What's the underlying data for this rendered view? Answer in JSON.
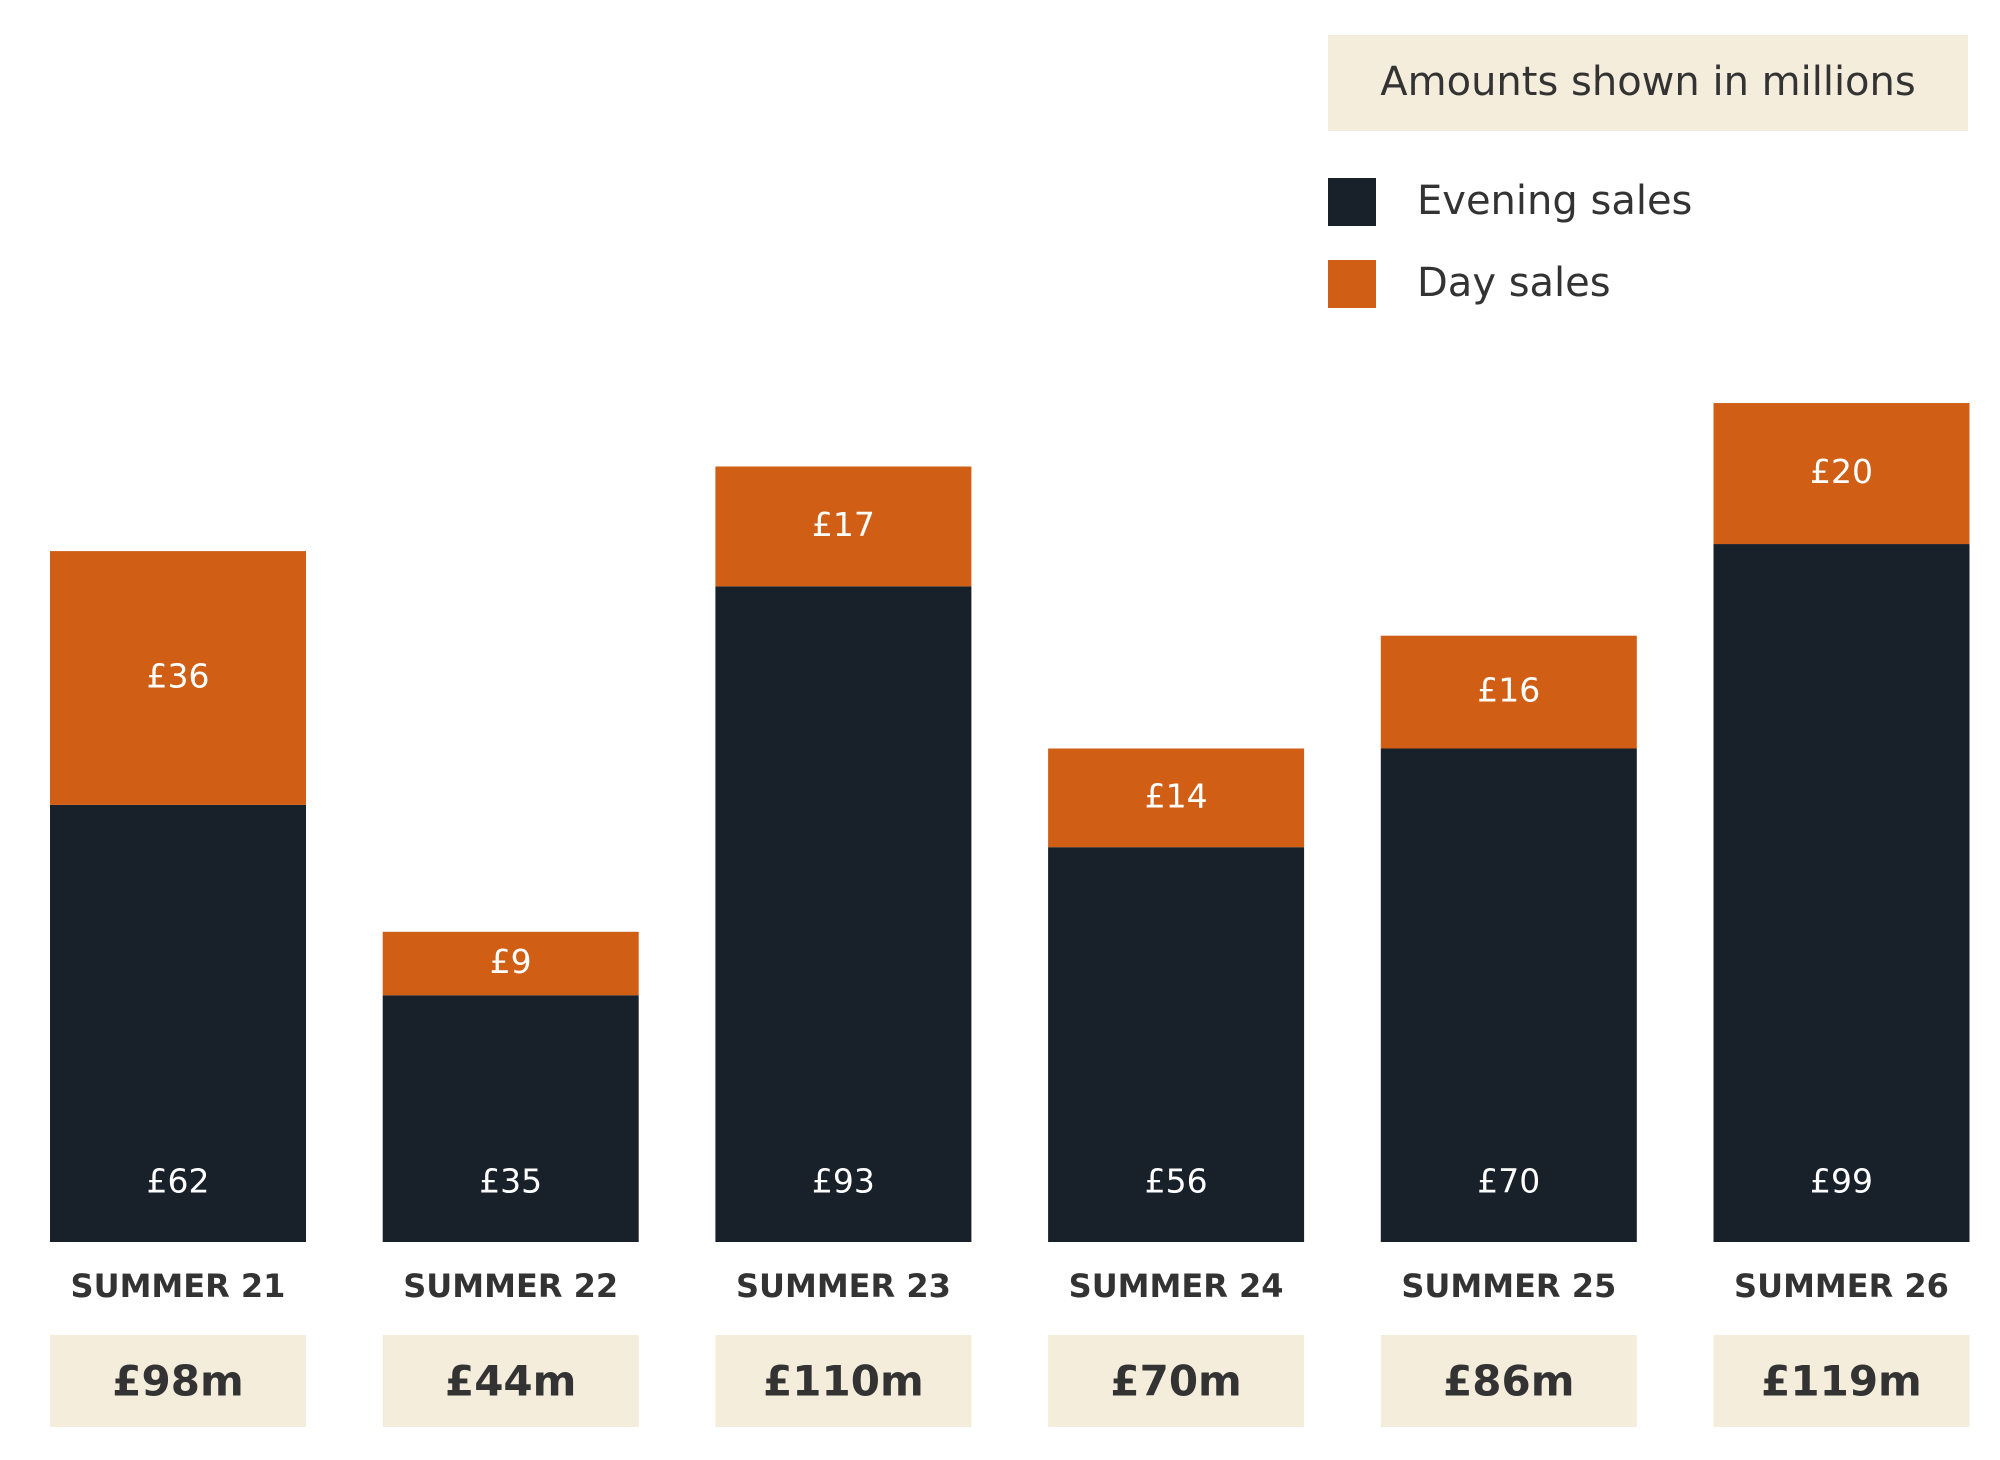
{
  "chart_data": {
    "type": "stacked_bar",
    "note": "Amounts shown in millions",
    "categories": [
      "SUMMER 21",
      "SUMMER 22",
      "SUMMER 23",
      "SUMMER 24",
      "SUMMER 25",
      "SUMMER 26"
    ],
    "series": [
      {
        "name": "Evening sales",
        "color": "#18202a",
        "values": [
          62,
          35,
          93,
          56,
          70,
          99
        ],
        "value_labels": [
          "£62",
          "£35",
          "£93",
          "£56",
          "£70",
          "£99"
        ]
      },
      {
        "name": "Day sales",
        "color": "#d05e15",
        "values": [
          36,
          9,
          17,
          14,
          16,
          20
        ],
        "value_labels": [
          "£36",
          "£9",
          "£17",
          "£14",
          "£16",
          "£20"
        ]
      }
    ],
    "totals": {
      "values": [
        98,
        44,
        110,
        70,
        86,
        119
      ],
      "value_labels": [
        "£98m",
        "£44m",
        "£110m",
        "£70m",
        "£86m",
        "£119m"
      ]
    },
    "ylim": [
      0,
      120
    ],
    "legend": "top-right"
  }
}
